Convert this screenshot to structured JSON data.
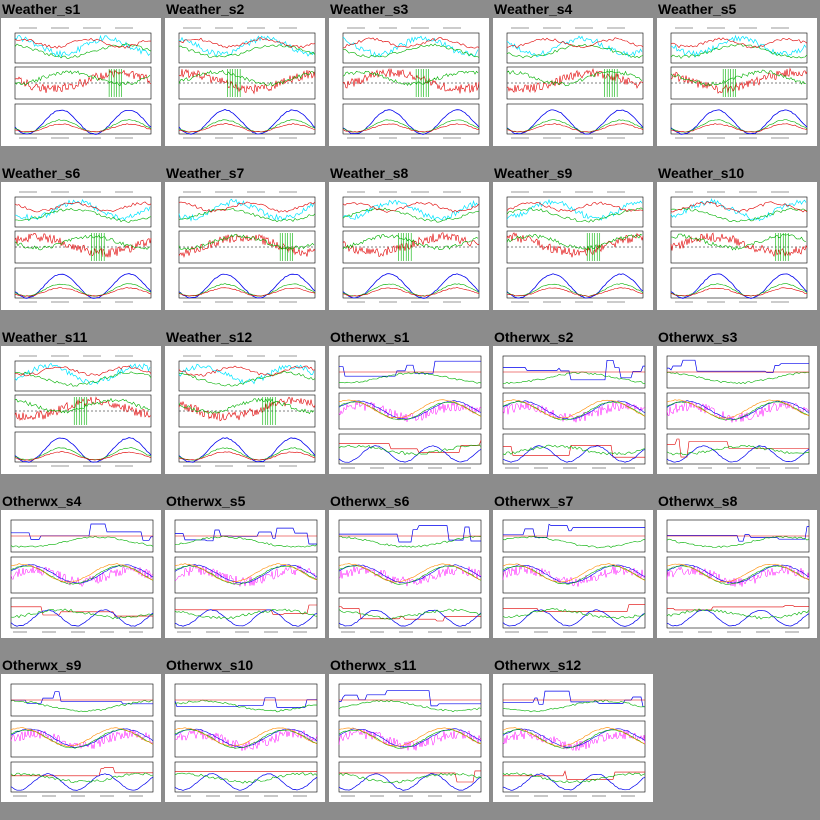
{
  "page": {
    "background": "#8c8c8c"
  },
  "thumbnails": [
    {
      "title": "Weather_s1",
      "kind": "weather"
    },
    {
      "title": "Weather_s2",
      "kind": "weather"
    },
    {
      "title": "Weather_s3",
      "kind": "weather"
    },
    {
      "title": "Weather_s4",
      "kind": "weather"
    },
    {
      "title": "Weather_s5",
      "kind": "weather"
    },
    {
      "title": "Weather_s6",
      "kind": "weather"
    },
    {
      "title": "Weather_s7",
      "kind": "weather"
    },
    {
      "title": "Weather_s8",
      "kind": "weather"
    },
    {
      "title": "Weather_s9",
      "kind": "weather"
    },
    {
      "title": "Weather_s10",
      "kind": "weather"
    },
    {
      "title": "Weather_s11",
      "kind": "weather"
    },
    {
      "title": "Weather_s12",
      "kind": "weather"
    },
    {
      "title": "Otherwx_s1",
      "kind": "otherwx"
    },
    {
      "title": "Otherwx_s2",
      "kind": "otherwx"
    },
    {
      "title": "Otherwx_s3",
      "kind": "otherwx"
    },
    {
      "title": "Otherwx_s4",
      "kind": "otherwx"
    },
    {
      "title": "Otherwx_s5",
      "kind": "otherwx"
    },
    {
      "title": "Otherwx_s6",
      "kind": "otherwx"
    },
    {
      "title": "Otherwx_s7",
      "kind": "otherwx"
    },
    {
      "title": "Otherwx_s8",
      "kind": "otherwx"
    },
    {
      "title": "Otherwx_s9",
      "kind": "otherwx"
    },
    {
      "title": "Otherwx_s10",
      "kind": "otherwx"
    },
    {
      "title": "Otherwx_s11",
      "kind": "otherwx"
    },
    {
      "title": "Otherwx_s12",
      "kind": "otherwx"
    }
  ],
  "colors": {
    "cyan": "#00e5ff",
    "green": "#00b000",
    "red": "#e00000",
    "blue": "#0000ee",
    "magenta": "#ff00ff",
    "orange": "#ff8c00",
    "frame": "#000000"
  }
}
